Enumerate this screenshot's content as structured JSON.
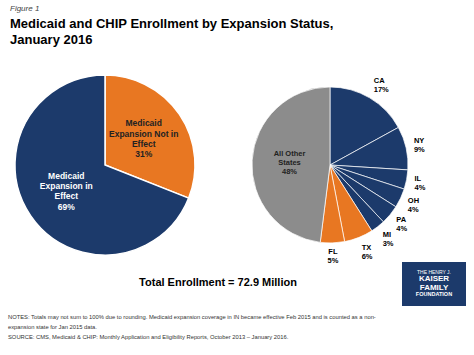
{
  "chart_data": [
    {
      "type": "pie",
      "title": "Medicaid and CHIP Enrollment by Expansion Status,\nJanuary 2016",
      "annotations": [
        "Figure 1",
        "Total Enrollment = 72.9 Million",
        "NOTES: Totals may not sum to 100% due to rounding. Medicaid expansion coverage in IN became effective Feb 2015 and is counted as a non-",
        "expansion state for Jan 2015 data.",
        "SOURCE: CMS, Medicaid & CHIP: Monthly Application and Eligibility Reports, October 2013 – January 2016.",
        "THE HENRY J.",
        "KAISER",
        "FAMILY",
        "FOUNDATION"
      ],
      "categories": [
        "Medicaid\nExpansion Not in\nEffect",
        "Medicaid\nExpansion in\nEffect"
      ],
      "values": [
        31,
        69
      ],
      "value_labels": [
        "31%",
        "69%"
      ],
      "colors": [
        "#E87722",
        "#1C3A6B"
      ],
      "data_labels": true
    },
    {
      "type": "pie",
      "categories": [
        "CA",
        "NY",
        "IL",
        "OH",
        "PA",
        "MI",
        "TX",
        "FL",
        "All Other\nStates"
      ],
      "values": [
        17,
        9,
        4,
        4,
        4,
        3,
        6,
        5,
        48
      ],
      "value_labels": [
        "17%",
        "9%",
        "4%",
        "4%",
        "4%",
        "3%",
        "6%",
        "5%",
        "48%"
      ],
      "colors": [
        "#1C3A6B",
        "#1C3A6B",
        "#1C3A6B",
        "#1C3A6B",
        "#1C3A6B",
        "#1C3A6B",
        "#E87722",
        "#E87722",
        "#8C8C8C"
      ],
      "data_labels": true
    }
  ]
}
